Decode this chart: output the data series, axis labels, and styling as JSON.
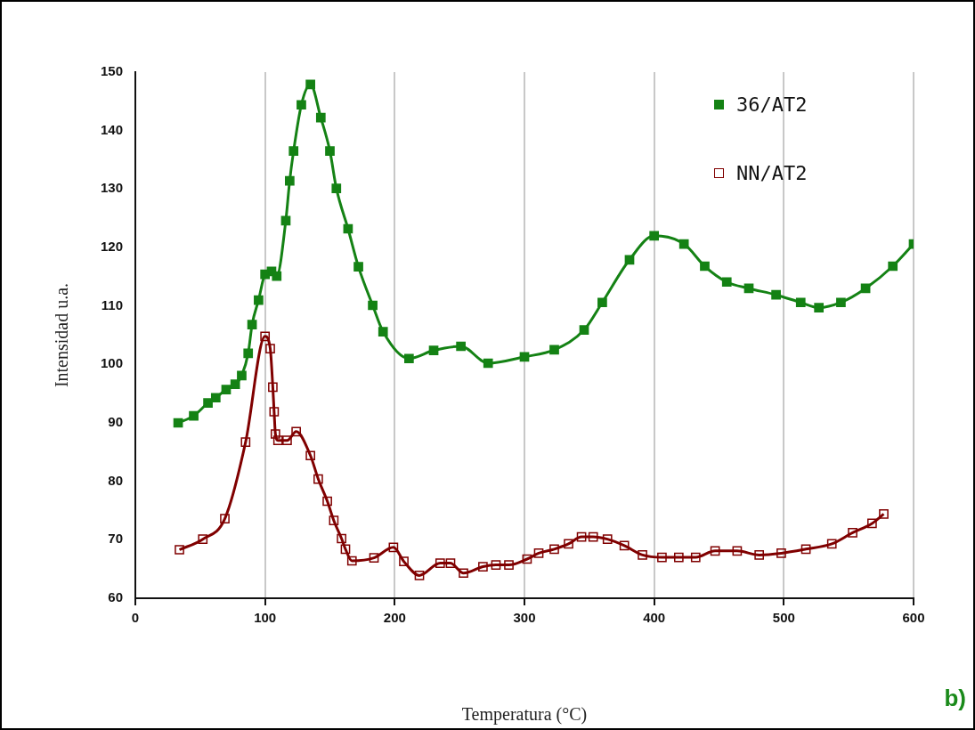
{
  "chart_data": {
    "type": "line",
    "xlabel": "Temperatura (°C)",
    "ylabel": "Intensidad u.a.",
    "annotations": [
      "b)"
    ],
    "xlim": [
      0,
      600
    ],
    "xticks": [
      0,
      100,
      200,
      300,
      400,
      500,
      600
    ],
    "ylim": [
      60,
      150
    ],
    "yticks": [
      60,
      70,
      80,
      90,
      100,
      110,
      120,
      130,
      140,
      150
    ],
    "grid": "x",
    "legend": "top right",
    "marker": "square",
    "line_style": "solid",
    "series": [
      {
        "name": "36/AT2",
        "color": "#148214",
        "x": [
          33,
          45,
          56,
          62,
          70,
          77,
          82,
          87,
          90,
          95,
          100,
          105,
          109,
          116,
          119,
          122,
          128,
          135,
          143,
          150,
          155,
          164,
          172,
          183,
          191,
          211,
          230,
          251,
          272,
          300,
          323,
          346,
          360,
          381,
          400,
          423,
          439,
          456,
          473,
          494,
          513,
          527,
          544,
          563,
          584,
          600
        ],
        "values": [
          90.0,
          91.2,
          93.4,
          94.3,
          95.7,
          96.6,
          98.1,
          101.9,
          106.8,
          111.0,
          115.4,
          115.9,
          115.1,
          124.6,
          131.4,
          136.5,
          144.4,
          147.9,
          142.2,
          136.5,
          130.1,
          123.2,
          116.7,
          110.1,
          105.6,
          101.0,
          102.4,
          103.1,
          100.2,
          101.3,
          102.5,
          105.9,
          110.6,
          117.9,
          122.0,
          120.6,
          116.8,
          114.1,
          113.0,
          111.9,
          110.6,
          109.7,
          110.6,
          113.0,
          116.8,
          120.6
        ]
      },
      {
        "name": "NN/AT2",
        "color": "#800000",
        "x": [
          34,
          52,
          69,
          85,
          100,
          104,
          106,
          107,
          108,
          110,
          117,
          124,
          135,
          141,
          148,
          153,
          159,
          162,
          167,
          184,
          199,
          207,
          219,
          235,
          243,
          253,
          268,
          278,
          288,
          302,
          311,
          323,
          334,
          344,
          353,
          364,
          377,
          391,
          406,
          419,
          432,
          447,
          464,
          481,
          498,
          517,
          537,
          553,
          568,
          577
        ],
        "values": [
          68.3,
          70.1,
          73.6,
          86.7,
          104.8,
          102.7,
          96.1,
          91.9,
          88.1,
          87.0,
          87.0,
          88.5,
          84.4,
          80.4,
          76.6,
          73.3,
          70.2,
          68.4,
          66.4,
          66.9,
          68.7,
          66.3,
          63.9,
          66.0,
          66.0,
          64.3,
          65.4,
          65.7,
          65.7,
          66.7,
          67.7,
          68.4,
          69.3,
          70.5,
          70.5,
          70.1,
          69.0,
          67.4,
          67.0,
          67.0,
          67.0,
          68.1,
          68.1,
          67.4,
          67.7,
          68.4,
          69.3,
          71.2,
          72.8,
          74.4
        ]
      }
    ]
  }
}
